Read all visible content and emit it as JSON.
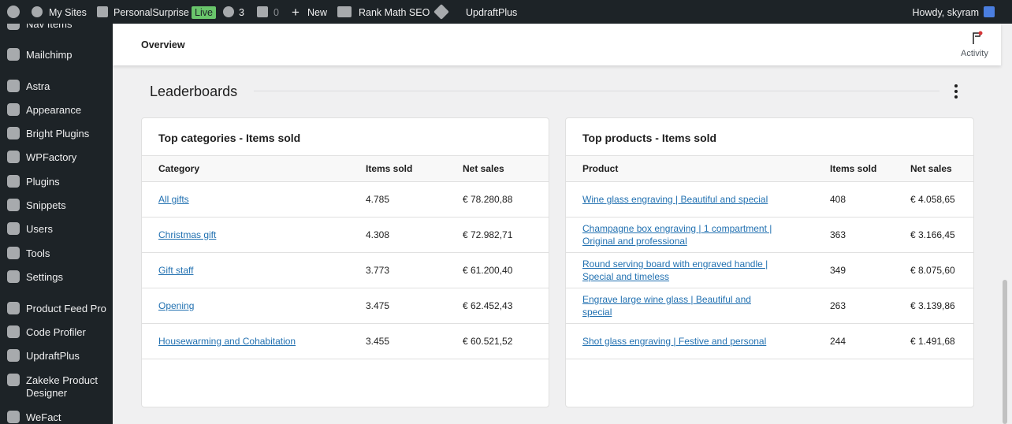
{
  "admin_bar": {
    "items": [
      "My Sites",
      "PersonalSurprise",
      "Live",
      "3",
      "0",
      "New",
      "Rank Math SEO",
      "UpdraftPlus"
    ],
    "greeting": "Howdy, skyram"
  },
  "sidebar": {
    "items": [
      "Nav Items",
      "Mailchimp",
      "Astra",
      "Appearance",
      "Bright Plugins",
      "WPFactory",
      "Plugins",
      "Snippets",
      "Users",
      "Tools",
      "Settings",
      "Product Feed Pro",
      "Code Profiler",
      "UpdraftPlus",
      "Zakeke Product Designer",
      "WeFact"
    ]
  },
  "header": {
    "title": "Overview",
    "activity": "Activity"
  },
  "section": {
    "title": "Leaderboards"
  },
  "tables": [
    {
      "title": "Top categories - Items sold",
      "columns": [
        "Category",
        "Items sold",
        "Net sales"
      ],
      "rows": [
        [
          "All gifts",
          "4.785",
          "€ 78.280,88"
        ],
        [
          "Christmas gift",
          "4.308",
          "€ 72.982,71"
        ],
        [
          "Gift staff",
          "3.773",
          "€ 61.200,40"
        ],
        [
          "Opening",
          "3.475",
          "€ 62.452,43"
        ],
        [
          "Housewarming and Cohabitation",
          "3.455",
          "€ 60.521,52"
        ]
      ]
    },
    {
      "title": "Top products - Items sold",
      "columns": [
        "Product",
        "Items sold",
        "Net sales"
      ],
      "rows": [
        [
          "Wine glass engraving | Beautiful and special",
          "408",
          "€ 4.058,65"
        ],
        [
          "Champagne box engraving | 1 compartment | Original and professional",
          "363",
          "€ 3.166,45"
        ],
        [
          "Round serving board with engraved handle | Special and timeless",
          "349",
          "€ 8.075,60"
        ],
        [
          "Engrave large wine glass | Beautiful and special",
          "263",
          "€ 3.139,86"
        ],
        [
          "Shot glass engraving | Festive and personal",
          "244",
          "€ 1.491,68"
        ]
      ]
    }
  ]
}
